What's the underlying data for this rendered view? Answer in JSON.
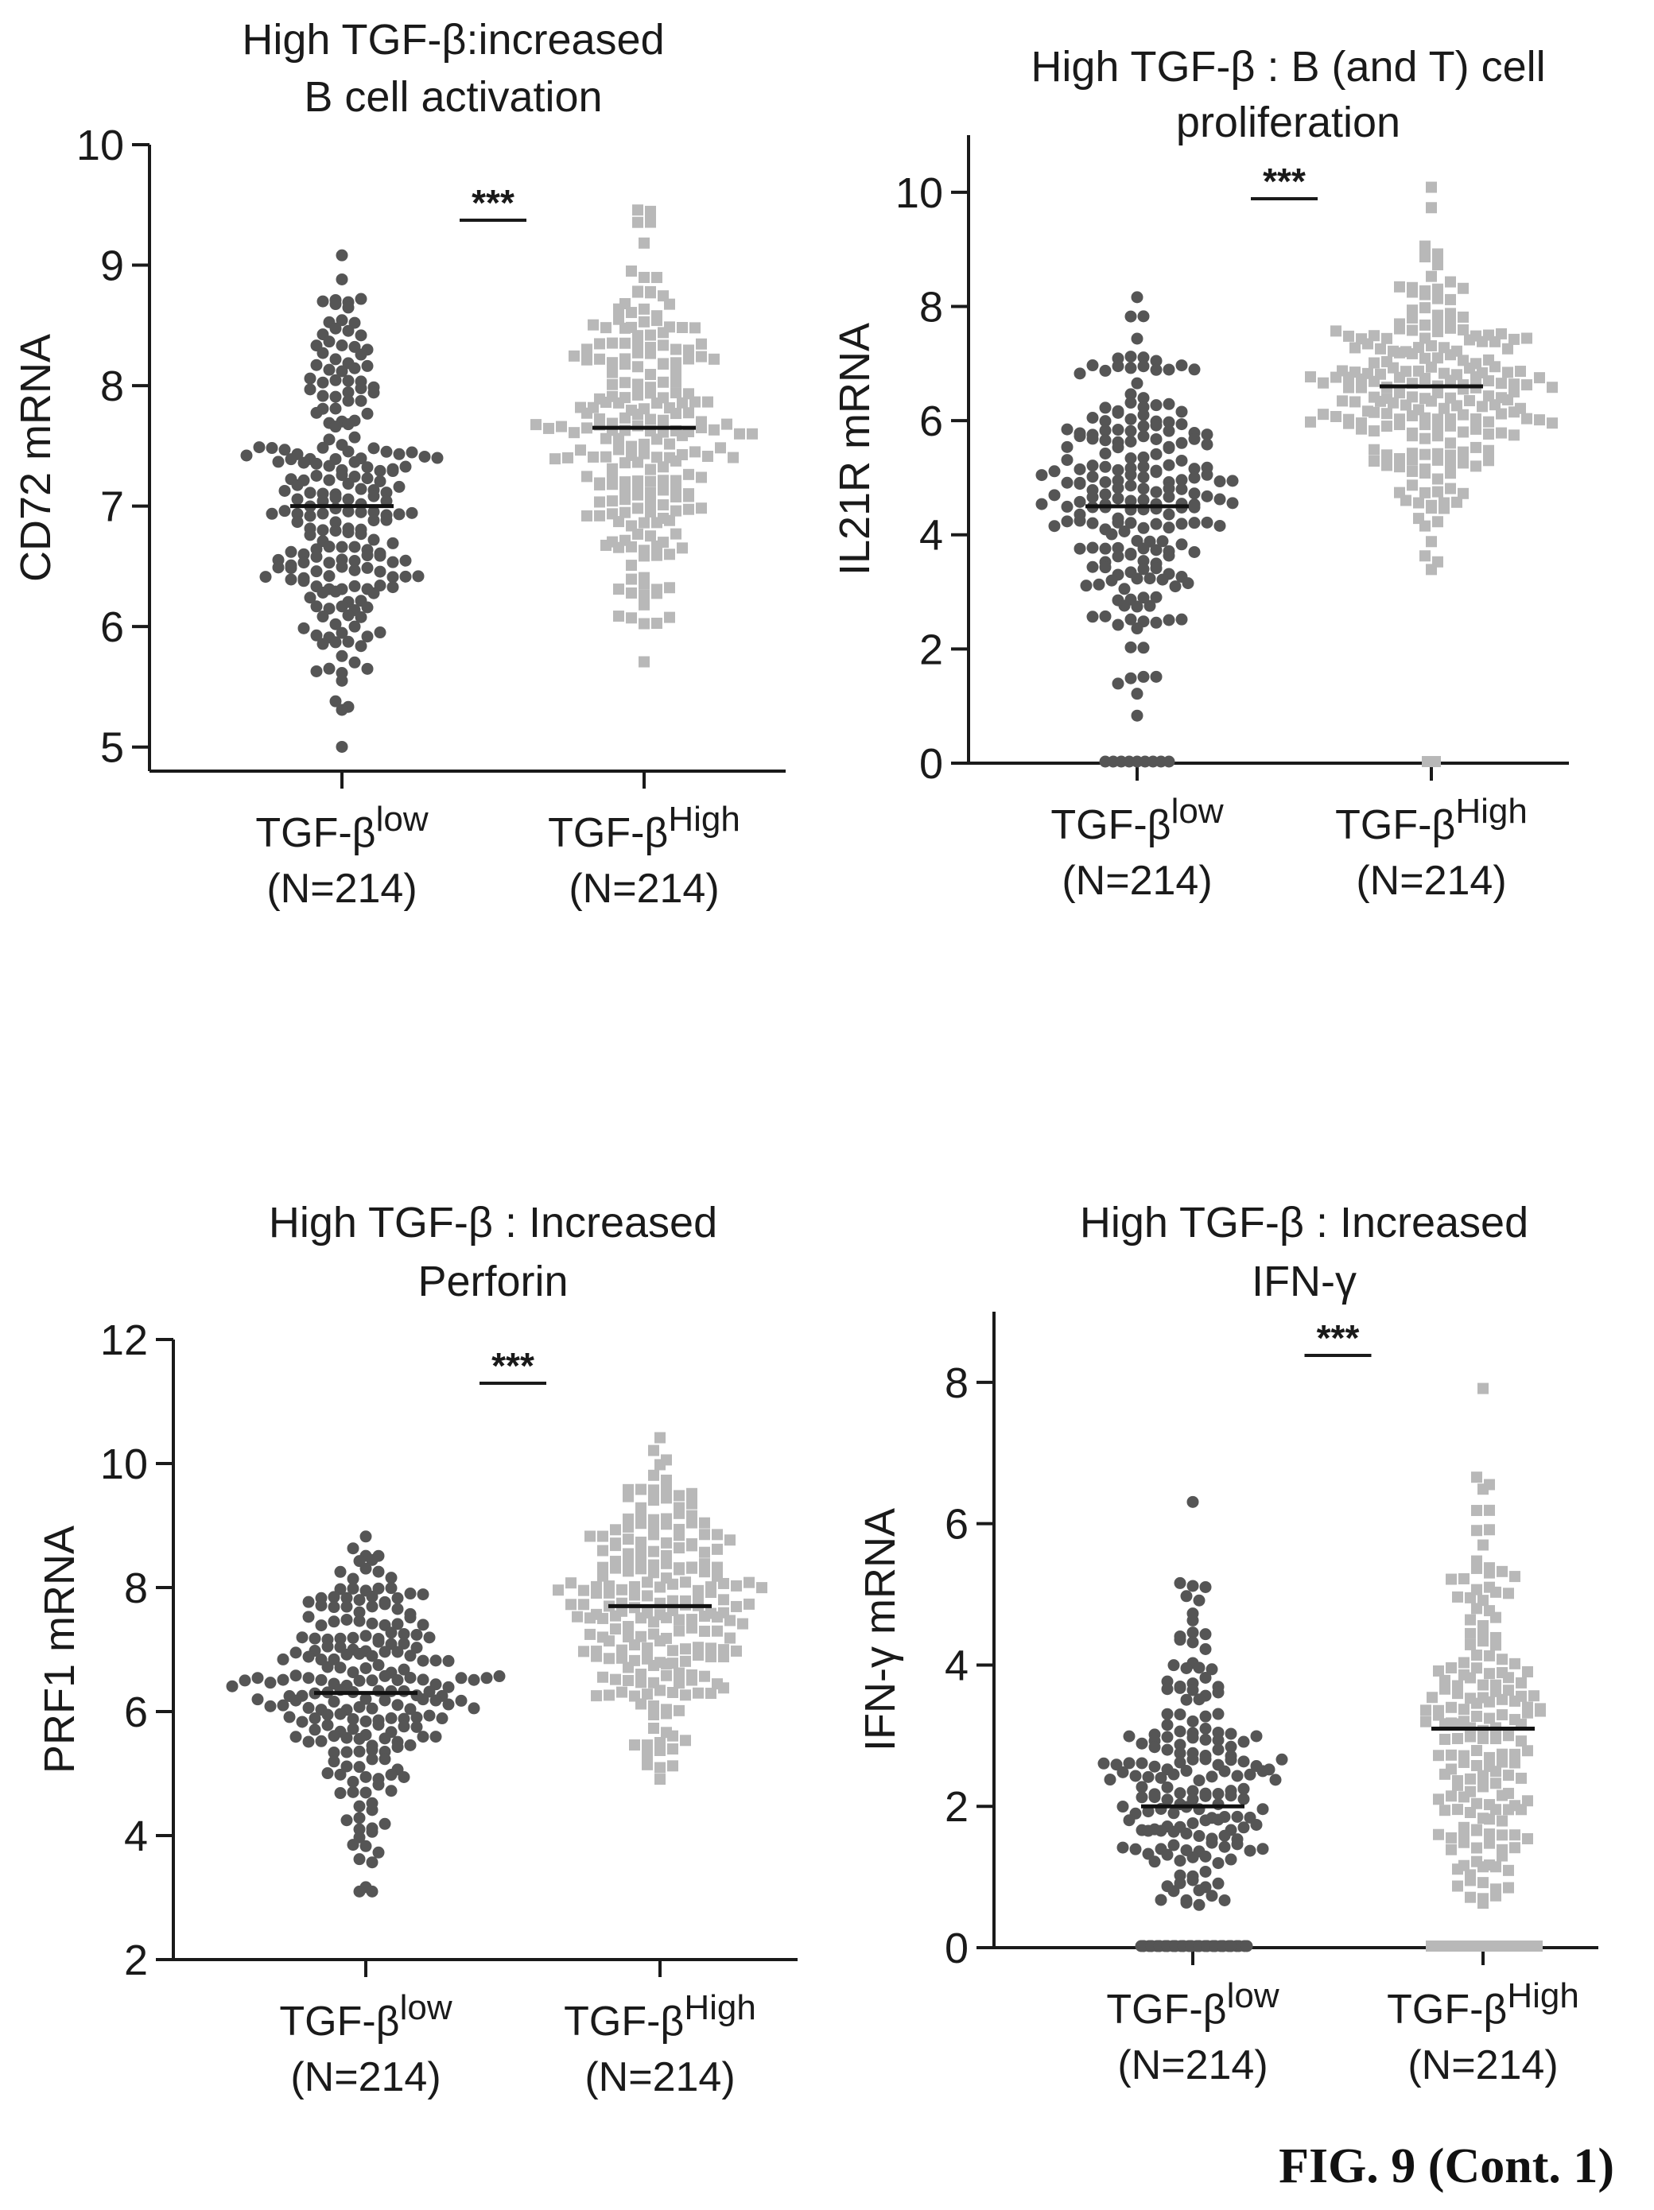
{
  "figure_label": "FIG. 9 (Cont. 1)",
  "colors": {
    "low": "#555555",
    "high": "#b8b8b8",
    "axis": "#1a1a1a"
  },
  "chart_data": [
    {
      "type": "scatter",
      "title": [
        "High TGF-β:increased",
        "B cell activation"
      ],
      "ylabel": "CD72 mRNA",
      "ylim": [
        4.8,
        10.0
      ],
      "yticks": [
        5,
        6,
        7,
        8,
        9,
        10
      ],
      "significance": "***",
      "categories": [
        {
          "name": "TGF-β",
          "sup": "low",
          "n_label": "(N=214)"
        },
        {
          "name": "TGF-β",
          "sup": "High",
          "n_label": "(N=214)"
        }
      ],
      "series": [
        {
          "group": "low",
          "n": 214,
          "median": 7.0,
          "spread": 0.8,
          "min": 4.95,
          "max": 9.3,
          "zero_count": 0
        },
        {
          "group": "high",
          "n": 214,
          "median": 7.65,
          "spread": 0.75,
          "min": 5.55,
          "max": 9.85,
          "zero_count": 0
        }
      ]
    },
    {
      "type": "scatter",
      "title": [
        "High TGF-β : B (and T) cell",
        "proliferation"
      ],
      "ylabel": "IL21R mRNA",
      "ylim": [
        0,
        11
      ],
      "yticks": [
        0,
        2,
        4,
        6,
        8,
        10
      ],
      "significance": "***",
      "categories": [
        {
          "name": "TGF-β",
          "sup": "low",
          "n_label": "(N=214)"
        },
        {
          "name": "TGF-β",
          "sup": "High",
          "n_label": "(N=214)"
        }
      ],
      "series": [
        {
          "group": "low",
          "n": 214,
          "median": 4.5,
          "spread": 1.4,
          "min": 0.7,
          "max": 8.7,
          "zero_count": 9
        },
        {
          "group": "high",
          "n": 214,
          "median": 6.6,
          "spread": 1.2,
          "min": 2.3,
          "max": 10.2,
          "zero_count": 2
        }
      ]
    },
    {
      "type": "scatter",
      "title": [
        "High TGF-β : Increased",
        "Perforin"
      ],
      "ylabel": "PRF1 mRNA",
      "ylim": [
        2,
        12
      ],
      "yticks": [
        2,
        4,
        6,
        8,
        10,
        12
      ],
      "significance": "***",
      "categories": [
        {
          "name": "TGF-β",
          "sup": "low",
          "n_label": "(N=214)"
        },
        {
          "name": "TGF-β",
          "sup": "High",
          "n_label": "(N=214)"
        }
      ],
      "series": [
        {
          "group": "low",
          "n": 214,
          "median": 6.3,
          "spread": 1.2,
          "min": 2.5,
          "max": 9.8,
          "zero_count": 0
        },
        {
          "group": "high",
          "n": 214,
          "median": 7.7,
          "spread": 1.1,
          "min": 3.9,
          "max": 11.1,
          "zero_count": 0
        }
      ]
    },
    {
      "type": "scatter",
      "title": [
        "High TGF-β : Increased",
        "IFN-γ"
      ],
      "ylabel": "IFN-γ mRNA",
      "ylim": [
        0,
        9
      ],
      "yticks": [
        0,
        2,
        4,
        6,
        8
      ],
      "significance": "***",
      "categories": [
        {
          "name": "TGF-β",
          "sup": "low",
          "n_label": "(N=214)"
        },
        {
          "name": "TGF-β",
          "sup": "High",
          "n_label": "(N=214)"
        }
      ],
      "series": [
        {
          "group": "low",
          "n": 214,
          "median": 2.0,
          "spread": 1.3,
          "min": 0.6,
          "max": 6.4,
          "zero_count": 40
        },
        {
          "group": "high",
          "n": 214,
          "median": 3.1,
          "spread": 1.5,
          "min": 0.6,
          "max": 8.0,
          "zero_count": 40
        }
      ]
    }
  ]
}
